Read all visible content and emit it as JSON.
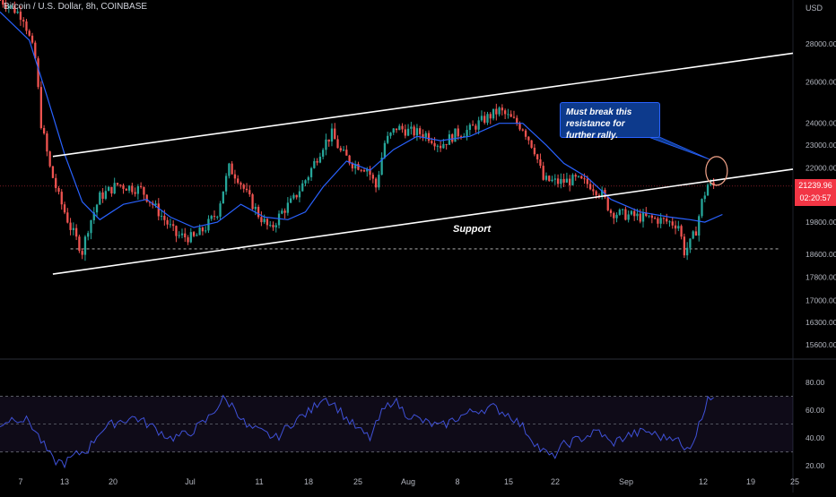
{
  "header": {
    "title": "Bitcoin / U.S. Dollar, 8h, COINBASE"
  },
  "price_scale": {
    "currency": "USD",
    "ticks": [
      "28000.00",
      "26000.00",
      "24000.00",
      "23000.00",
      "22000.00",
      "19800.00",
      "18600.00",
      "17800.00",
      "17000.00",
      "16300.00",
      "15600.00"
    ]
  },
  "last_price": {
    "value": "21239.96",
    "countdown": "02:20:57"
  },
  "rsi_scale": {
    "ticks": [
      "80.00",
      "60.00",
      "40.00",
      "20.00"
    ]
  },
  "time_axis": {
    "ticks": [
      "7",
      "13",
      "20",
      "Jul",
      "11",
      "18",
      "25",
      "Aug",
      "8",
      "15",
      "22",
      "Sep",
      "12",
      "19",
      "25"
    ]
  },
  "annotations": {
    "note": "Must break this resistance for further rally.",
    "support": "Support"
  },
  "colors": {
    "bull": "#26a69a",
    "bear": "#ef5350",
    "ma": "#2962ff",
    "rsi": "#3f51d8",
    "trend": "#ffffff",
    "price_tag": "#f23645",
    "circle": "#f4a48a"
  },
  "chart_data": {
    "type": "candlestick",
    "title": "Bitcoin / U.S. Dollar, 8h, COINBASE",
    "y_scale": "log",
    "ylim": [
      15200,
      30500
    ],
    "last_price": 21239.96,
    "anchors": [
      {
        "t": 0,
        "p": 30500
      },
      {
        "t": 3,
        "p": 30200
      },
      {
        "t": 8,
        "p": 29500
      },
      {
        "t": 12,
        "p": 27200
      },
      {
        "t": 14,
        "p": 24000
      },
      {
        "t": 17,
        "p": 22000
      },
      {
        "t": 20,
        "p": 20800
      },
      {
        "t": 24,
        "p": 19600
      },
      {
        "t": 28,
        "p": 18700
      },
      {
        "t": 30,
        "p": 19600
      },
      {
        "t": 34,
        "p": 20800
      },
      {
        "t": 40,
        "p": 21300
      },
      {
        "t": 48,
        "p": 21100
      },
      {
        "t": 54,
        "p": 20200
      },
      {
        "t": 60,
        "p": 19300
      },
      {
        "t": 66,
        "p": 19200
      },
      {
        "t": 70,
        "p": 19600
      },
      {
        "t": 74,
        "p": 20200
      },
      {
        "t": 78,
        "p": 22000
      },
      {
        "t": 81,
        "p": 21600
      },
      {
        "t": 84,
        "p": 20900
      },
      {
        "t": 88,
        "p": 20100
      },
      {
        "t": 92,
        "p": 19500
      },
      {
        "t": 96,
        "p": 20200
      },
      {
        "t": 100,
        "p": 20700
      },
      {
        "t": 105,
        "p": 21700
      },
      {
        "t": 110,
        "p": 23000
      },
      {
        "t": 113,
        "p": 23500
      },
      {
        "t": 116,
        "p": 22700
      },
      {
        "t": 120,
        "p": 22200
      },
      {
        "t": 125,
        "p": 22000
      },
      {
        "t": 128,
        "p": 21200
      },
      {
        "t": 131,
        "p": 23100
      },
      {
        "t": 135,
        "p": 23800
      },
      {
        "t": 140,
        "p": 23600
      },
      {
        "t": 145,
        "p": 23500
      },
      {
        "t": 150,
        "p": 23000
      },
      {
        "t": 155,
        "p": 23500
      },
      {
        "t": 160,
        "p": 23700
      },
      {
        "t": 165,
        "p": 24200
      },
      {
        "t": 170,
        "p": 24600
      },
      {
        "t": 174,
        "p": 24200
      },
      {
        "t": 178,
        "p": 23800
      },
      {
        "t": 182,
        "p": 22800
      },
      {
        "t": 185,
        "p": 21500
      },
      {
        "t": 190,
        "p": 21400
      },
      {
        "t": 196,
        "p": 21500
      },
      {
        "t": 201,
        "p": 21300
      },
      {
        "t": 205,
        "p": 20900
      },
      {
        "t": 208,
        "p": 20200
      },
      {
        "t": 212,
        "p": 20100
      },
      {
        "t": 218,
        "p": 20000
      },
      {
        "t": 224,
        "p": 19900
      },
      {
        "t": 228,
        "p": 19800
      },
      {
        "t": 231,
        "p": 19700
      },
      {
        "t": 233,
        "p": 18700
      },
      {
        "t": 235,
        "p": 19000
      },
      {
        "t": 237,
        "p": 19500
      },
      {
        "t": 239,
        "p": 20600
      },
      {
        "t": 241,
        "p": 21300
      },
      {
        "t": 243,
        "p": 21240
      }
    ],
    "moving_average": [
      {
        "t": 0,
        "p": 29800
      },
      {
        "t": 10,
        "p": 28200
      },
      {
        "t": 16,
        "p": 25300
      },
      {
        "t": 22,
        "p": 22600
      },
      {
        "t": 28,
        "p": 20600
      },
      {
        "t": 34,
        "p": 19900
      },
      {
        "t": 42,
        "p": 20500
      },
      {
        "t": 50,
        "p": 20700
      },
      {
        "t": 58,
        "p": 20000
      },
      {
        "t": 66,
        "p": 19600
      },
      {
        "t": 74,
        "p": 19800
      },
      {
        "t": 82,
        "p": 20500
      },
      {
        "t": 90,
        "p": 20000
      },
      {
        "t": 98,
        "p": 19900
      },
      {
        "t": 104,
        "p": 20200
      },
      {
        "t": 110,
        "p": 21200
      },
      {
        "t": 118,
        "p": 22300
      },
      {
        "t": 126,
        "p": 21900
      },
      {
        "t": 134,
        "p": 22800
      },
      {
        "t": 142,
        "p": 23400
      },
      {
        "t": 150,
        "p": 23200
      },
      {
        "t": 160,
        "p": 23400
      },
      {
        "t": 170,
        "p": 24000
      },
      {
        "t": 178,
        "p": 24000
      },
      {
        "t": 186,
        "p": 23000
      },
      {
        "t": 192,
        "p": 22200
      },
      {
        "t": 200,
        "p": 21600
      },
      {
        "t": 208,
        "p": 20700
      },
      {
        "t": 218,
        "p": 20200
      },
      {
        "t": 228,
        "p": 20000
      },
      {
        "t": 235,
        "p": 19900
      },
      {
        "t": 240,
        "p": 19800
      },
      {
        "t": 246,
        "p": 20100
      }
    ],
    "resistance_line": [
      {
        "t": 18,
        "p": 22500
      },
      {
        "t": 270,
        "p": 27500
      }
    ],
    "support_line": [
      {
        "t": 18,
        "p": 17900
      },
      {
        "t": 270,
        "p": 21950
      }
    ],
    "horizontal_level": 18800,
    "rsi": {
      "ylim": [
        15,
        82
      ],
      "bands": [
        30,
        50,
        70
      ],
      "points": [
        {
          "t": 0,
          "v": 50
        },
        {
          "t": 5,
          "v": 55
        },
        {
          "t": 10,
          "v": 52
        },
        {
          "t": 14,
          "v": 38
        },
        {
          "t": 18,
          "v": 24
        },
        {
          "t": 22,
          "v": 22
        },
        {
          "t": 26,
          "v": 28
        },
        {
          "t": 30,
          "v": 32
        },
        {
          "t": 34,
          "v": 45
        },
        {
          "t": 40,
          "v": 52
        },
        {
          "t": 46,
          "v": 55
        },
        {
          "t": 52,
          "v": 48
        },
        {
          "t": 58,
          "v": 40
        },
        {
          "t": 64,
          "v": 43
        },
        {
          "t": 70,
          "v": 52
        },
        {
          "t": 76,
          "v": 68
        },
        {
          "t": 80,
          "v": 62
        },
        {
          "t": 84,
          "v": 48
        },
        {
          "t": 88,
          "v": 45
        },
        {
          "t": 94,
          "v": 40
        },
        {
          "t": 100,
          "v": 52
        },
        {
          "t": 106,
          "v": 60
        },
        {
          "t": 110,
          "v": 70
        },
        {
          "t": 114,
          "v": 64
        },
        {
          "t": 118,
          "v": 54
        },
        {
          "t": 122,
          "v": 46
        },
        {
          "t": 126,
          "v": 40
        },
        {
          "t": 130,
          "v": 58
        },
        {
          "t": 134,
          "v": 68
        },
        {
          "t": 138,
          "v": 58
        },
        {
          "t": 144,
          "v": 52
        },
        {
          "t": 150,
          "v": 48
        },
        {
          "t": 156,
          "v": 55
        },
        {
          "t": 162,
          "v": 60
        },
        {
          "t": 168,
          "v": 62
        },
        {
          "t": 174,
          "v": 56
        },
        {
          "t": 178,
          "v": 48
        },
        {
          "t": 184,
          "v": 32
        },
        {
          "t": 188,
          "v": 26
        },
        {
          "t": 192,
          "v": 35
        },
        {
          "t": 198,
          "v": 40
        },
        {
          "t": 204,
          "v": 45
        },
        {
          "t": 208,
          "v": 36
        },
        {
          "t": 214,
          "v": 42
        },
        {
          "t": 220,
          "v": 45
        },
        {
          "t": 226,
          "v": 40
        },
        {
          "t": 230,
          "v": 42
        },
        {
          "t": 233,
          "v": 30
        },
        {
          "t": 236,
          "v": 38
        },
        {
          "t": 239,
          "v": 55
        },
        {
          "t": 241,
          "v": 71
        },
        {
          "t": 243,
          "v": 69
        }
      ]
    }
  }
}
